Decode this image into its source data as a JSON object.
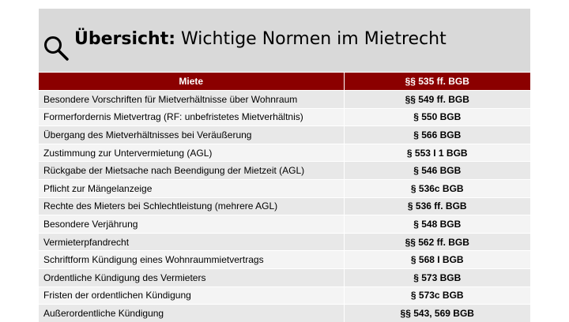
{
  "slide": {
    "title_bold": "Übersicht:",
    "title_rest": " Wichtige Normen im Mietrecht",
    "icon": "search-icon",
    "header_color": "#8b0000"
  },
  "table": {
    "headers": [
      "Miete",
      "§§ 535 ff. BGB"
    ],
    "rows": [
      {
        "label": "Besondere Vorschriften für Mietverhältnisse über Wohnraum",
        "norm": "§§ 549 ff. BGB"
      },
      {
        "label": "Formerfordernis Mietvertrag (RF: unbefristetes Mietverhältnis)",
        "norm": "§ 550 BGB"
      },
      {
        "label": "Übergang des Mietverhältnisses bei Veräußerung",
        "norm": "§ 566 BGB"
      },
      {
        "label": "Zustimmung zur Untervermietung (AGL)",
        "norm": "§ 553 I 1 BGB"
      },
      {
        "label": "Rückgabe der Mietsache nach Beendigung der Mietzeit (AGL)",
        "norm": "§ 546 BGB"
      },
      {
        "label": "Pflicht zur Mängelanzeige",
        "norm": "§ 536c BGB"
      },
      {
        "label": "Rechte des Mieters bei Schlechtleistung (mehrere AGL)",
        "norm": "§ 536 ff. BGB"
      },
      {
        "label": "Besondere Verjährung",
        "norm": "§ 548 BGB"
      },
      {
        "label": "Vermieterpfandrecht",
        "norm": "§§ 562 ff. BGB"
      },
      {
        "label": "Schriftform Kündigung eines Wohnraummietvertrags",
        "norm": "§ 568 I BGB"
      },
      {
        "label": "Ordentliche Kündigung des Vermieters",
        "norm": "§ 573 BGB"
      },
      {
        "label": "Fristen der ordentlichen Kündigung",
        "norm": "§ 573c BGB"
      },
      {
        "label": "Außerordentliche Kündigung",
        "norm": "§§ 543, 569 BGB"
      }
    ]
  }
}
